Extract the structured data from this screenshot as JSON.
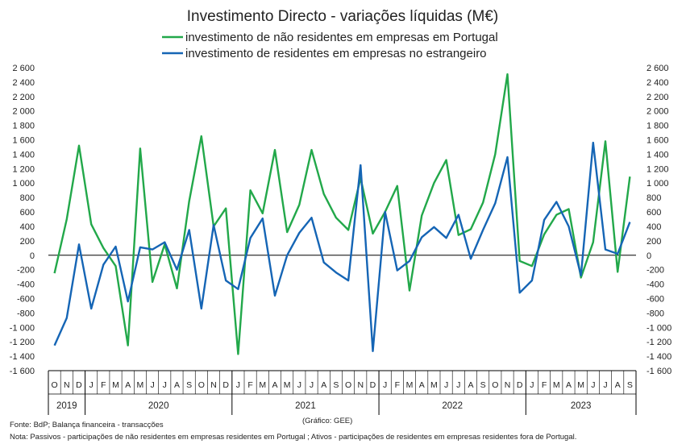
{
  "chart_data": {
    "type": "line",
    "title": "Investimento Directo - variações líquidas (M€)",
    "ylim": [
      -1600,
      2600
    ],
    "y_ticks": [
      2600,
      2400,
      2200,
      2000,
      1800,
      1600,
      1400,
      1200,
      1000,
      800,
      600,
      400,
      200,
      0,
      -200,
      -400,
      -600,
      -800,
      -1000,
      -1200,
      -1400,
      -1600
    ],
    "y_tick_labels": [
      "2 600",
      "2 400",
      "2 200",
      "2 000",
      "1 800",
      "1 600",
      "1 400",
      "1 200",
      "1 000",
      "800",
      "600",
      "400",
      "200",
      "0",
      "-200",
      "-400",
      "-600",
      "-800",
      "-1 000",
      "-1 200",
      "-1 400",
      "-1 600"
    ],
    "secondary_y_axis": true,
    "grid": false,
    "legend_position": "top",
    "categories": [
      "O",
      "N",
      "D",
      "J",
      "F",
      "M",
      "A",
      "M",
      "J",
      "J",
      "A",
      "S",
      "O",
      "N",
      "D",
      "J",
      "F",
      "M",
      "A",
      "M",
      "J",
      "J",
      "A",
      "S",
      "O",
      "N",
      "D",
      "J",
      "F",
      "M",
      "A",
      "M",
      "J",
      "J",
      "A",
      "S",
      "O",
      "N",
      "D",
      "J",
      "F",
      "M",
      "A",
      "M",
      "J",
      "J",
      "A",
      "S"
    ],
    "year_labels": [
      "2019",
      "2020",
      "2021",
      "2022",
      "2023"
    ],
    "series": [
      {
        "name": "investimento de não residentes em empresas em Portugal",
        "color": "#22a84a",
        "values": [
          -250,
          500,
          1520,
          430,
          100,
          -150,
          -1250,
          1480,
          -370,
          150,
          -460,
          750,
          1650,
          400,
          650,
          -1370,
          900,
          580,
          1460,
          320,
          700,
          1460,
          850,
          520,
          350,
          1070,
          300,
          600,
          960,
          -490,
          550,
          1000,
          1320,
          280,
          360,
          730,
          1400,
          2510,
          -80,
          -150,
          290,
          560,
          640,
          -310,
          180,
          1580,
          -230,
          1090
        ]
      },
      {
        "name": "investimento de residentes em empresas no estrangeiro",
        "color": "#1565b5",
        "values": [
          -1250,
          -870,
          150,
          -740,
          -130,
          120,
          -640,
          110,
          80,
          180,
          -200,
          350,
          -740,
          420,
          -350,
          -470,
          240,
          510,
          -560,
          0,
          310,
          520,
          -100,
          -240,
          -350,
          1250,
          -1330,
          600,
          -210,
          -80,
          250,
          390,
          240,
          560,
          -50,
          350,
          720,
          1360,
          -520,
          -350,
          490,
          740,
          400,
          -280,
          1560,
          80,
          20,
          460
        ]
      }
    ]
  },
  "footer": {
    "source": "Fonte: BdP; Balança financeira - transacções",
    "credit": "(Gráfico: GEE)",
    "note": "Nota: Passivos - participações de não residentes em empresas residentes em Portugal ; Ativos - participações de residentes em empresas residentes fora de Portugal."
  }
}
